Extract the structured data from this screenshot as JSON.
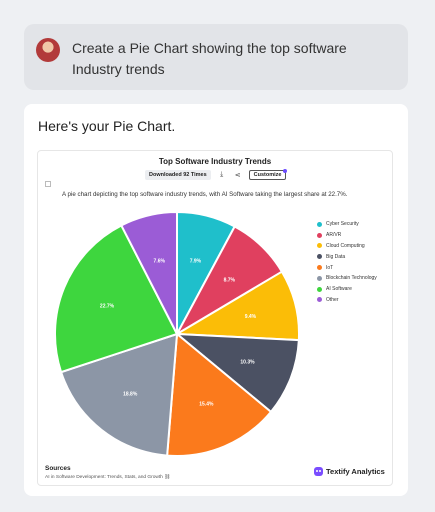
{
  "prompt": {
    "line1": "Create a Pie Chart showing the top software",
    "line2": "Industry trends"
  },
  "answer": {
    "heading": "Here's your Pie Chart."
  },
  "chart_toolbar": {
    "download_label": "Downloaded 92 Times",
    "customize_label": "Customize"
  },
  "chart_data": {
    "type": "pie",
    "title": "Top Software Industry Trends",
    "description": "A pie chart depicting the top software industry trends, with AI Software taking the largest share at 22.7%.",
    "categories": [
      "Cyber Security",
      "AR/VR",
      "Cloud Computing",
      "Big Data",
      "IoT",
      "Blockchain Technology",
      "AI Software",
      "Other"
    ],
    "values": [
      7.9,
      8.7,
      9.4,
      10.3,
      15.4,
      18.8,
      22.7,
      7.6
    ],
    "labels": [
      "7.9%",
      "8.7%",
      "9.4%",
      "10.3%",
      "15.4%",
      "18.8%",
      "22.7%",
      "7.6%"
    ],
    "colors": [
      "#1fbfcb",
      "#e0405f",
      "#fbbd07",
      "#4b5163",
      "#fb7a1c",
      "#8c96a6",
      "#3ed63e",
      "#9b5cd6"
    ],
    "legend_position": "right"
  },
  "sources": {
    "title": "Sources",
    "link_text": "AI in Software Development: Trends, Stats, and Growth"
  },
  "brand": {
    "name": "Textify Analytics"
  }
}
